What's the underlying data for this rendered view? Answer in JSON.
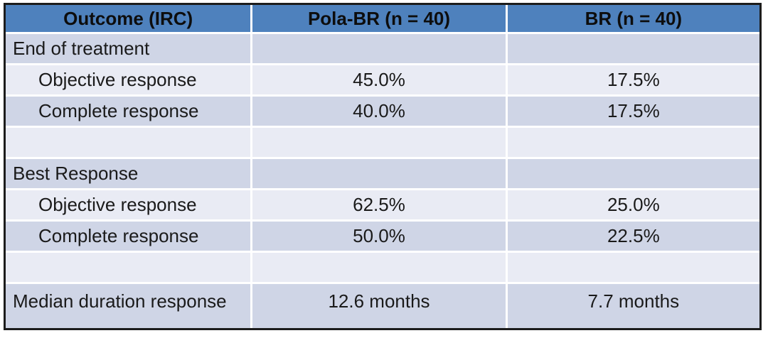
{
  "table": {
    "header": {
      "outcome": "Outcome (IRC)",
      "pola_br": "Pola-BR (n = 40)",
      "br": "BR (n = 40)"
    },
    "rows": [
      {
        "label": "End of treatment",
        "pola": "",
        "br": ""
      },
      {
        "label": "Objective response",
        "pola": "45.0%",
        "br": "17.5%"
      },
      {
        "label": "Complete response",
        "pola": "40.0%",
        "br": "17.5%"
      },
      {
        "label": "",
        "pola": "",
        "br": ""
      },
      {
        "label": "Best Response",
        "pola": "",
        "br": ""
      },
      {
        "label": "Objective response",
        "pola": "62.5%",
        "br": "25.0%"
      },
      {
        "label": "Complete response",
        "pola": "50.0%",
        "br": "22.5%"
      },
      {
        "label": "",
        "pola": "",
        "br": ""
      },
      {
        "label": "Median duration response",
        "pola": "12.6 months",
        "br": "7.7 months"
      }
    ]
  },
  "colors": {
    "header_bg": "#4e81bd",
    "header_text": "#0d0d0d",
    "band_dark": "#cfd5e6",
    "band_light": "#e9ebf4",
    "body_text": "#1a1a1a",
    "border": "#1c1c1c",
    "gridline": "#ffffff"
  },
  "chart_data": {
    "type": "table",
    "title": "",
    "columns": [
      "Outcome (IRC)",
      "Pola-BR (n = 40)",
      "BR (n = 40)"
    ],
    "rows": [
      [
        "End of treatment",
        "",
        ""
      ],
      [
        "Objective response",
        "45.0%",
        "17.5%"
      ],
      [
        "Complete response",
        "40.0%",
        "17.5%"
      ],
      [
        "",
        "",
        ""
      ],
      [
        "Best Response",
        "",
        ""
      ],
      [
        "Objective response",
        "62.5%",
        "25.0%"
      ],
      [
        "Complete response",
        "50.0%",
        "22.5%"
      ],
      [
        "",
        "",
        ""
      ],
      [
        "Median duration response",
        "12.6 months",
        "7.7 months"
      ]
    ],
    "notes": "Banded outcome table: header blue #4e81bd, alternating lavender row bands, section rows (End of treatment, Best Response) and spacer rows span empty value cells."
  }
}
